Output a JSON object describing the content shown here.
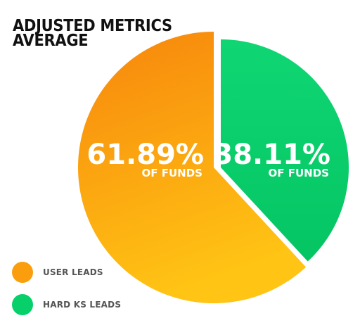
{
  "chart_data": {
    "type": "pie",
    "title_lines": [
      "ADJUSTED METRICS",
      "AVERAGE"
    ],
    "slices": [
      {
        "label": "USER LEADS",
        "value": 61.89,
        "value_text": "61.89%",
        "sublabel": "OF FUNDS",
        "color": "#fa9e0e",
        "color_light": "#ffc414",
        "color_dark": "#f7850c"
      },
      {
        "label": "HARD KS LEADS",
        "value": 38.11,
        "value_text": "38.11%",
        "sublabel": "OF FUNDS",
        "color": "#07cf6a",
        "color_light": "#0fd673",
        "color_dark": "#05c563"
      }
    ],
    "legend_placement": "bottom-left"
  }
}
